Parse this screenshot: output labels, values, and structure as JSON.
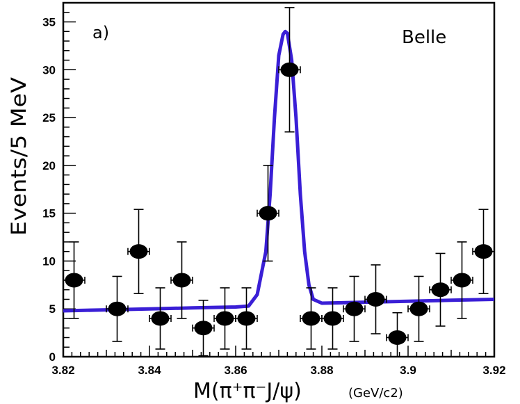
{
  "chart_data": {
    "type": "scatter",
    "panel_label": "a)",
    "experiment_label": "Belle",
    "ylabel": "Events/5 MeV",
    "xlabel": "M(π⁺π⁻J/ψ)",
    "xlabel_units": "(GeV/c2)",
    "xlim": [
      3.82,
      3.92
    ],
    "ylim": [
      0,
      37
    ],
    "x_ticks": [
      "3.82",
      "3.84",
      "3.86",
      "3.88",
      "3.9",
      "3.92"
    ],
    "y_ticks": [
      "0",
      "5",
      "10",
      "15",
      "20",
      "25",
      "30",
      "35"
    ],
    "series": [
      {
        "name": "data",
        "x": [
          3.8225,
          3.8325,
          3.8375,
          3.8425,
          3.8475,
          3.8525,
          3.8575,
          3.8625,
          3.8675,
          3.8725,
          3.8775,
          3.8825,
          3.8875,
          3.8925,
          3.8975,
          3.9025,
          3.9075,
          3.9125,
          3.9175
        ],
        "y": [
          8,
          5,
          11,
          4,
          8,
          3,
          4,
          4,
          15,
          30,
          4,
          4,
          5,
          6,
          2,
          5,
          7,
          8,
          11
        ],
        "yerr": [
          4,
          3.4,
          4.4,
          3.2,
          4,
          2.9,
          3.2,
          3.2,
          5,
          6.5,
          3.2,
          3.2,
          3.4,
          3.6,
          2.6,
          3.4,
          3.8,
          4,
          4.4
        ],
        "xerr": 0.0025
      },
      {
        "name": "fit",
        "x": [
          3.82,
          3.83,
          3.84,
          3.85,
          3.86,
          3.863,
          3.865,
          3.867,
          3.868,
          3.869,
          3.87,
          3.871,
          3.8715,
          3.872,
          3.873,
          3.874,
          3.875,
          3.876,
          3.877,
          3.878,
          3.88,
          3.89,
          3.9,
          3.91,
          3.92
        ],
        "y": [
          4.8,
          4.9,
          5.0,
          5.1,
          5.2,
          5.3,
          6.5,
          11,
          17,
          25,
          31.5,
          33.7,
          34.0,
          33.8,
          31,
          25,
          17,
          11,
          7.5,
          6.0,
          5.6,
          5.7,
          5.8,
          5.9,
          6.0
        ]
      }
    ],
    "colors": {
      "fit": "#3a1fd6",
      "markers": "#000000",
      "axes": "#000000"
    }
  }
}
